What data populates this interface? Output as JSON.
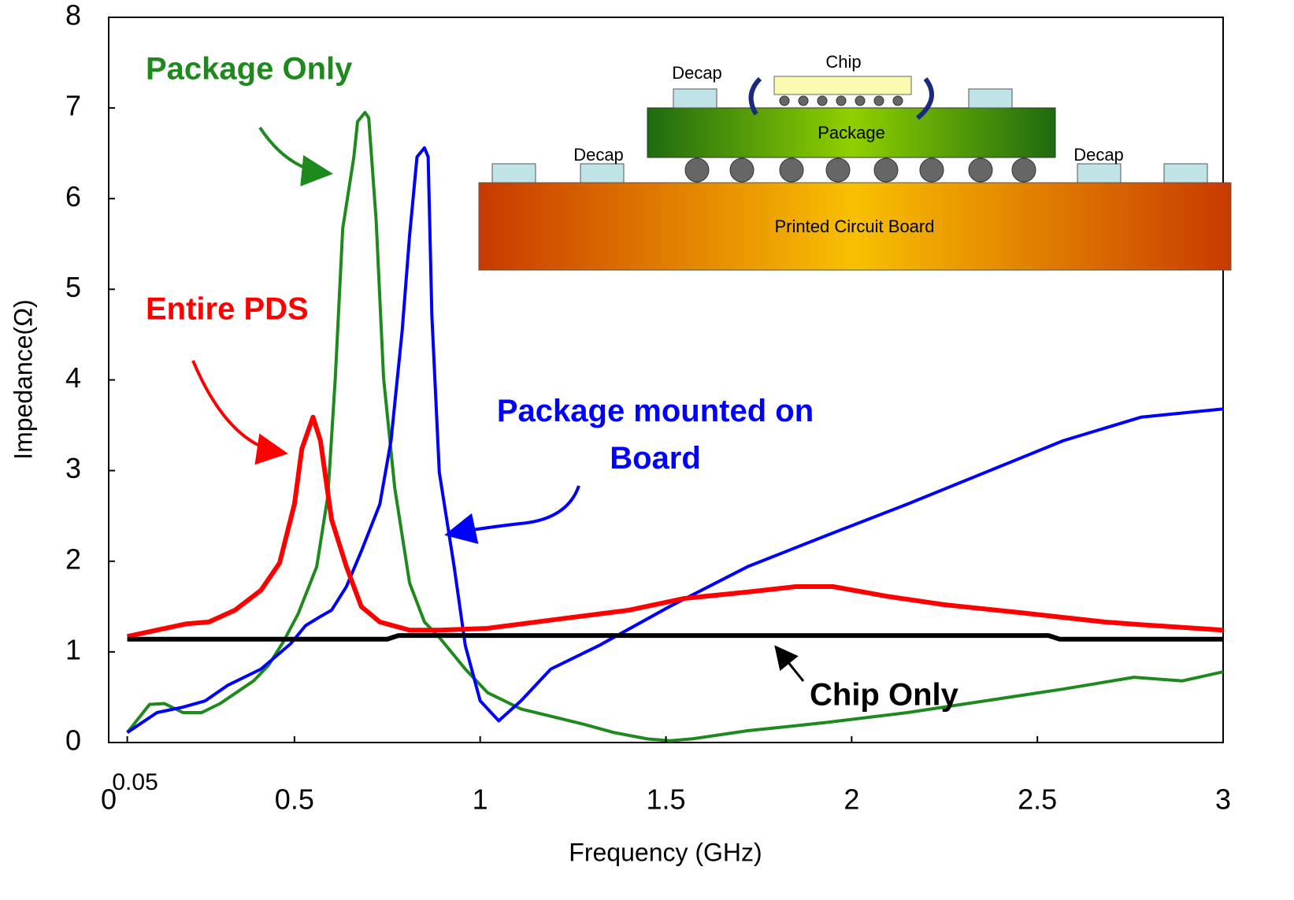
{
  "chart_data": {
    "type": "line",
    "xlabel": "Frequency (GHz)",
    "ylabel": "Impedance(Ω)",
    "xlim": [
      0,
      3
    ],
    "ylim": [
      0,
      8
    ],
    "xticks": [
      0,
      0.05,
      0.5,
      1,
      1.5,
      2,
      2.5,
      3
    ],
    "yticks": [
      0,
      1,
      2,
      3,
      4,
      5,
      6,
      7,
      8
    ],
    "series": [
      {
        "name": "Package Only",
        "color": "#1e8a1e",
        "x": [
          0.05,
          0.11,
          0.15,
          0.2,
          0.25,
          0.3,
          0.39,
          0.43,
          0.47,
          0.51,
          0.56,
          0.59,
          0.61,
          0.63,
          0.66,
          0.67,
          0.69,
          0.7,
          0.72,
          0.74,
          0.77,
          0.81,
          0.85,
          0.89,
          0.96,
          1.02,
          1.11,
          1.19,
          1.28,
          1.36,
          1.45,
          1.51,
          1.57,
          1.72,
          1.93,
          2.15,
          2.36,
          2.57,
          2.76,
          2.89,
          3.0
        ],
        "values": [
          0.11,
          0.42,
          0.43,
          0.33,
          0.33,
          0.43,
          0.68,
          0.85,
          1.11,
          1.42,
          1.94,
          2.72,
          4.02,
          5.67,
          6.46,
          6.85,
          6.95,
          6.89,
          5.76,
          4.02,
          2.81,
          1.76,
          1.33,
          1.16,
          0.81,
          0.55,
          0.37,
          0.29,
          0.2,
          0.11,
          0.04,
          0.02,
          0.04,
          0.13,
          0.22,
          0.33,
          0.46,
          0.59,
          0.72,
          0.68,
          0.78
        ]
      },
      {
        "name": "Package mounted on Board",
        "color": "#0000ff",
        "x": [
          0.05,
          0.13,
          0.2,
          0.26,
          0.32,
          0.41,
          0.49,
          0.53,
          0.57,
          0.6,
          0.64,
          0.68,
          0.73,
          0.76,
          0.79,
          0.81,
          0.83,
          0.85,
          0.86,
          0.87,
          0.89,
          0.93,
          0.96,
          1.0,
          1.05,
          1.11,
          1.19,
          1.32,
          1.51,
          1.72,
          1.93,
          2.15,
          2.36,
          2.57,
          2.78,
          3.0
        ],
        "values": [
          0.11,
          0.33,
          0.39,
          0.46,
          0.63,
          0.81,
          1.09,
          1.29,
          1.39,
          1.46,
          1.72,
          2.11,
          2.63,
          3.33,
          4.54,
          5.59,
          6.46,
          6.56,
          6.46,
          4.71,
          2.98,
          1.94,
          1.07,
          0.46,
          0.24,
          0.46,
          0.81,
          1.07,
          1.5,
          1.94,
          2.28,
          2.63,
          2.98,
          3.33,
          3.59,
          3.68
        ]
      },
      {
        "name": "Entire PDS",
        "color": "#ff0000",
        "x": [
          0.05,
          0.13,
          0.21,
          0.27,
          0.34,
          0.41,
          0.46,
          0.5,
          0.52,
          0.55,
          0.57,
          0.6,
          0.64,
          0.68,
          0.73,
          0.81,
          0.89,
          1.02,
          1.19,
          1.4,
          1.55,
          1.72,
          1.85,
          1.95,
          2.1,
          2.25,
          2.46,
          2.68,
          2.78,
          2.89,
          3.0
        ],
        "values": [
          1.17,
          1.24,
          1.31,
          1.33,
          1.46,
          1.68,
          1.98,
          2.63,
          3.24,
          3.59,
          3.33,
          2.46,
          1.94,
          1.5,
          1.33,
          1.24,
          1.24,
          1.26,
          1.35,
          1.46,
          1.59,
          1.66,
          1.72,
          1.72,
          1.61,
          1.52,
          1.43,
          1.33,
          1.3,
          1.27,
          1.24
        ]
      },
      {
        "name": "Chip Only",
        "color": "#000000",
        "x": [
          0.05,
          0.75,
          0.78,
          2.53,
          2.56,
          3.0
        ],
        "values": [
          1.14,
          1.14,
          1.18,
          1.18,
          1.14,
          1.14
        ]
      }
    ],
    "inset": {
      "chip": "Chip",
      "package": "Package",
      "board": "Printed Circuit Board",
      "decaps": [
        "Decap",
        "Decap",
        "Decap"
      ]
    }
  }
}
